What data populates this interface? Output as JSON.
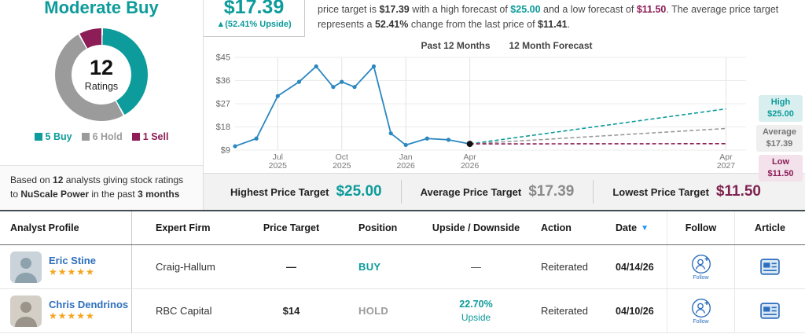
{
  "consensus": {
    "title": "Moderate Buy",
    "ratings_count": "12",
    "ratings_label": "Ratings",
    "counts": [
      5,
      6,
      1
    ],
    "legend": [
      {
        "label": "5 Buy",
        "color": "#0d9b9b"
      },
      {
        "label": "6 Hold",
        "color": "#9b9b9b"
      },
      {
        "label": "1 Sell",
        "color": "#8c1d56"
      }
    ],
    "footnote": {
      "pre": "Based on ",
      "count": "12",
      "mid": " analysts giving stock ratings to ",
      "company": "NuScale Power",
      "mid2": " in the past ",
      "period": "3 months"
    }
  },
  "price_target": {
    "value": "$17.39",
    "upside": "▲(52.41% Upside)",
    "desc": {
      "seg1": "price target is ",
      "value": "$17.39",
      "seg2": " with a high forecast of ",
      "high": "$25.00",
      "seg3": " and a low forecast of ",
      "low": "$11.50",
      "seg4": ". The average price target represents a ",
      "change": "52.41%",
      "seg5": " change from the last price of ",
      "last": "$11.41",
      "seg6": "."
    }
  },
  "chart_data": {
    "type": "line",
    "title_past": "Past 12 Months",
    "title_forecast": "12 Month Forecast",
    "ylim": [
      9,
      45
    ],
    "y_ticks": [
      9,
      18,
      27,
      36,
      45
    ],
    "y_tick_prefix": "$",
    "x_ticks": [
      {
        "month": "Jul",
        "year": "2025",
        "m": 2
      },
      {
        "month": "Oct",
        "year": "2025",
        "m": 5
      },
      {
        "month": "Jan",
        "year": "2026",
        "m": 8
      },
      {
        "month": "Apr",
        "year": "2026",
        "m": 11
      },
      {
        "month": "Apr",
        "year": "2027",
        "m": 23
      }
    ],
    "line_color": "#2b87c0",
    "history": {
      "months": [
        0,
        1,
        2,
        3,
        3.8,
        4.6,
        5,
        5.6,
        6.5,
        7.3,
        8,
        9,
        10,
        11
      ],
      "values": [
        10.5,
        13.5,
        30,
        35.5,
        41.5,
        33.5,
        35.5,
        33.5,
        41.5,
        15.5,
        11,
        13.5,
        13,
        11.41
      ]
    },
    "last_price": 11.41,
    "forecast": [
      {
        "name": "High",
        "value": 25.0,
        "label": "$25.00",
        "color": "#0d9b9b"
      },
      {
        "name": "Average",
        "value": 17.39,
        "label": "$17.39",
        "color": "#9a9a9a"
      },
      {
        "name": "Low",
        "value": 11.5,
        "label": "$11.50",
        "color": "#8c1d56"
      }
    ]
  },
  "stats": [
    {
      "label": "Highest Price Target",
      "value": "$25.00",
      "color": "#0d9b9b"
    },
    {
      "label": "Average Price Target",
      "value": "$17.39",
      "color": "#8a8a8a"
    },
    {
      "label": "Lowest Price Target",
      "value": "$11.50",
      "color": "#7e2250"
    }
  ],
  "table": {
    "headers": [
      "Analyst Profile",
      "Expert Firm",
      "Price Target",
      "Position",
      "Upside / Downside",
      "Action",
      "Date",
      "Follow",
      "Article"
    ],
    "sort_icon": "▼",
    "follow_label": "Follow",
    "rows": [
      {
        "analyst": "Eric Stine",
        "stars": "★★★★★",
        "firm": "Craig-Hallum",
        "price_target": "—",
        "position": "BUY",
        "position_type": "buy",
        "upside_value": "—",
        "upside_label": "",
        "upside_type": "dash",
        "action": "Reiterated",
        "date": "04/14/26"
      },
      {
        "analyst": "Chris Dendrinos",
        "stars": "★★★★★",
        "firm": "RBC Capital",
        "price_target": "$14",
        "position": "HOLD",
        "position_type": "hold",
        "upside_value": "22.70%",
        "upside_label": "Upside",
        "upside_type": "pct",
        "action": "Reiterated",
        "date": "04/10/26"
      }
    ]
  }
}
